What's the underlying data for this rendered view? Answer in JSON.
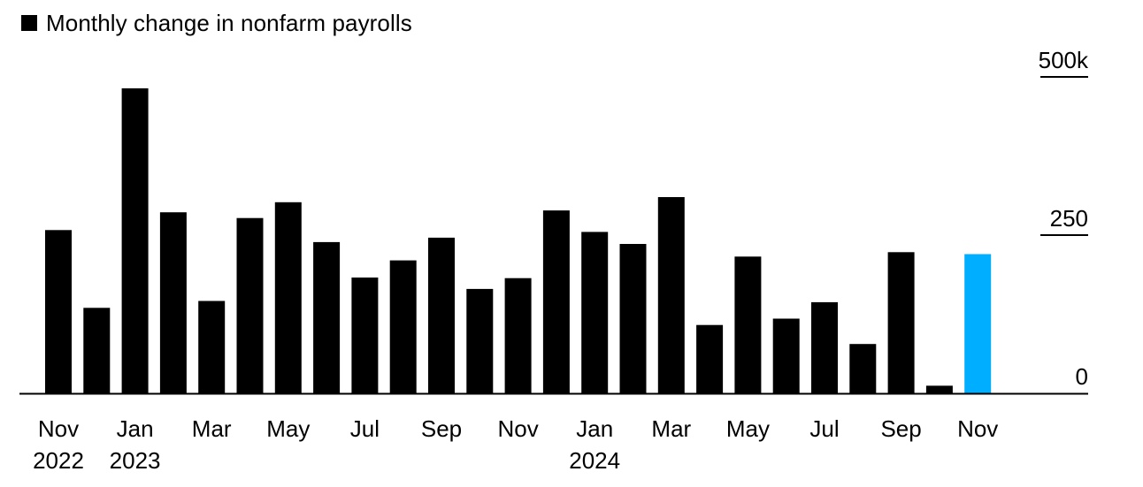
{
  "chart_data": {
    "type": "bar",
    "legend": {
      "label": "Monthly change in nonfarm payrolls",
      "swatch_color": "#000000",
      "placement": "top-left"
    },
    "ylim": [
      0,
      500
    ],
    "y_ticks": [
      {
        "value": 0,
        "label": "0"
      },
      {
        "value": 250,
        "label": "250"
      },
      {
        "value": 500,
        "label": "500k"
      }
    ],
    "y_axis_side": "right",
    "grid": false,
    "categories": [
      "Nov 2022",
      "Dec 2022",
      "Jan 2023",
      "Feb 2023",
      "Mar 2023",
      "Apr 2023",
      "May 2023",
      "Jun 2023",
      "Jul 2023",
      "Aug 2023",
      "Sep 2023",
      "Oct 2023",
      "Nov 2023",
      "Dec 2023",
      "Jan 2024",
      "Feb 2024",
      "Mar 2024",
      "Apr 2024",
      "May 2024",
      "Jun 2024",
      "Jul 2024",
      "Aug 2024",
      "Sep 2024",
      "Oct 2024",
      "Nov 2024"
    ],
    "values": [
      258,
      135,
      482,
      286,
      146,
      277,
      302,
      239,
      183,
      210,
      246,
      165,
      182,
      289,
      255,
      236,
      310,
      108,
      216,
      118,
      144,
      78,
      223,
      12,
      220
    ],
    "bar_colors": [
      "#000000",
      "#000000",
      "#000000",
      "#000000",
      "#000000",
      "#000000",
      "#000000",
      "#000000",
      "#000000",
      "#000000",
      "#000000",
      "#000000",
      "#000000",
      "#000000",
      "#000000",
      "#000000",
      "#000000",
      "#000000",
      "#000000",
      "#000000",
      "#000000",
      "#000000",
      "#000000",
      "#000000",
      "#00aeff"
    ],
    "highlight_color": "#00aeff",
    "x_tick_labels": [
      {
        "index": 0,
        "month": "Nov",
        "year": "2022"
      },
      {
        "index": 2,
        "month": "Jan",
        "year": "2023"
      },
      {
        "index": 4,
        "month": "Mar",
        "year": ""
      },
      {
        "index": 6,
        "month": "May",
        "year": ""
      },
      {
        "index": 8,
        "month": "Jul",
        "year": ""
      },
      {
        "index": 10,
        "month": "Sep",
        "year": ""
      },
      {
        "index": 12,
        "month": "Nov",
        "year": ""
      },
      {
        "index": 14,
        "month": "Jan",
        "year": "2024"
      },
      {
        "index": 16,
        "month": "Mar",
        "year": ""
      },
      {
        "index": 18,
        "month": "May",
        "year": ""
      },
      {
        "index": 20,
        "month": "Jul",
        "year": ""
      },
      {
        "index": 22,
        "month": "Sep",
        "year": ""
      },
      {
        "index": 24,
        "month": "Nov",
        "year": ""
      }
    ]
  }
}
